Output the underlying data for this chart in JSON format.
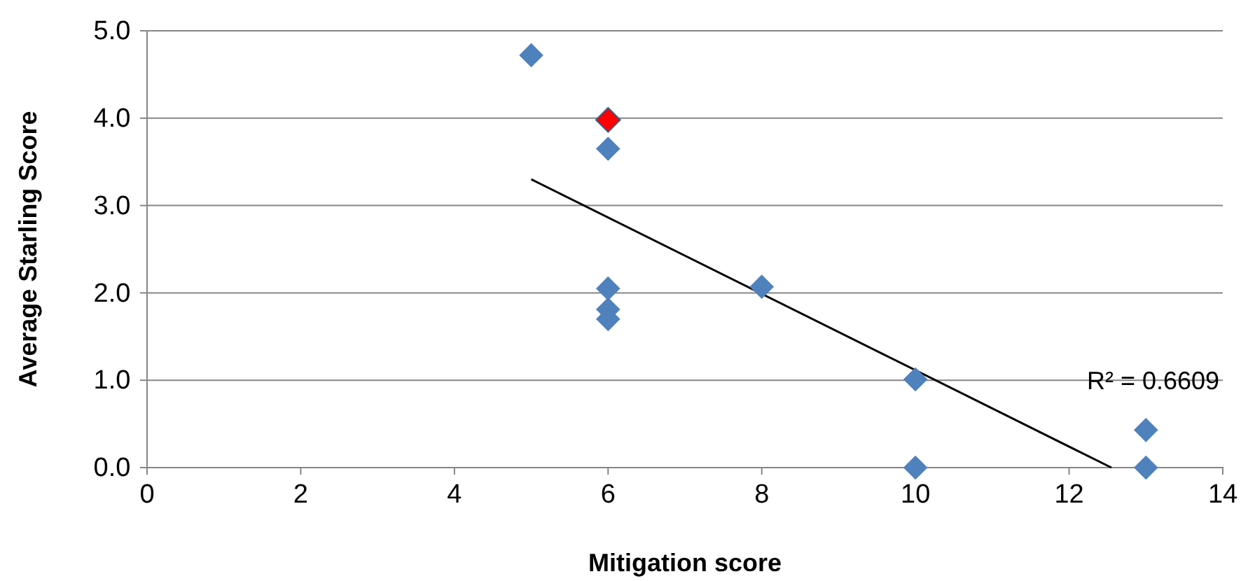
{
  "chart_data": {
    "type": "scatter",
    "xlabel": "Mitigation score",
    "ylabel": "Average Starling Score",
    "xlim": [
      0,
      14
    ],
    "xticks": [
      0,
      2,
      4,
      6,
      8,
      10,
      12,
      14
    ],
    "ylim": [
      0,
      5
    ],
    "yticks": [
      {
        "value": 0,
        "label": "0.0"
      },
      {
        "value": 1,
        "label": "1.0"
      },
      {
        "value": 2,
        "label": "2.0"
      },
      {
        "value": 3,
        "label": "3.0"
      },
      {
        "value": 4,
        "label": "4.0"
      },
      {
        "value": 5,
        "label": "5.0"
      }
    ],
    "grid": "y",
    "marker": "diamond",
    "series": [
      {
        "color": "#4f81bd",
        "x": [
          5,
          6,
          6,
          6,
          6,
          8,
          10,
          10,
          13,
          13
        ],
        "values": [
          4.72,
          3.65,
          2.05,
          1.81,
          1.7,
          2.07,
          1.01,
          0,
          0.43,
          0
        ]
      },
      {
        "color": "#ff0000",
        "x": [
          6
        ],
        "values": [
          3.98
        ]
      },
      {
        "type": "line",
        "color": "#000000",
        "x": [
          5,
          12.55
        ],
        "values": [
          3.3,
          0
        ],
        "marker": "none"
      }
    ],
    "annotations": [
      "R² = 0.6609"
    ]
  }
}
